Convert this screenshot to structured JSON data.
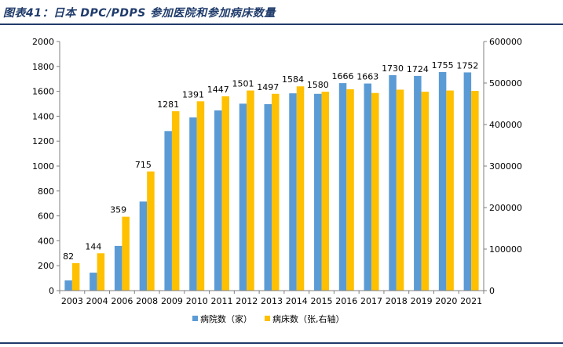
{
  "title": "图表41：日本 DPC/PDPS 参加医院和参加病床数量",
  "colors": {
    "title": "#1f3b6b",
    "hospitals": "#5b9bd5",
    "beds": "#ffc000"
  },
  "chart_data": {
    "type": "bar",
    "categories": [
      "2003",
      "2004",
      "2006",
      "2008",
      "2009",
      "2010",
      "2011",
      "2012",
      "2013",
      "2014",
      "2015",
      "2016",
      "2017",
      "2018",
      "2019",
      "2020",
      "2021"
    ],
    "series": [
      {
        "name": "病院数（家）",
        "axis": "left",
        "values": [
          82,
          144,
          359,
          715,
          1281,
          1391,
          1447,
          1501,
          1497,
          1584,
          1580,
          1666,
          1663,
          1730,
          1724,
          1755,
          1752
        ]
      },
      {
        "name": "病床数（张,右轴）",
        "axis": "right",
        "values": [
          66000,
          90000,
          178000,
          287000,
          432000,
          456000,
          468000,
          482000,
          474000,
          492000,
          479000,
          485000,
          476000,
          484000,
          479000,
          482000,
          481000
        ]
      }
    ],
    "data_labels": [
      82,
      144,
      359,
      715,
      1281,
      1391,
      1447,
      1501,
      1497,
      1584,
      1580,
      1666,
      1663,
      1730,
      1724,
      1755,
      1752
    ],
    "ylim_left": [
      0,
      2000
    ],
    "yticks_left": [
      0,
      200,
      400,
      600,
      800,
      1000,
      1200,
      1400,
      1600,
      1800,
      2000
    ],
    "ylim_right": [
      0,
      600000
    ],
    "yticks_right": [
      0,
      100000,
      200000,
      300000,
      400000,
      500000,
      600000
    ],
    "legend_position": "bottom",
    "grid": false
  }
}
